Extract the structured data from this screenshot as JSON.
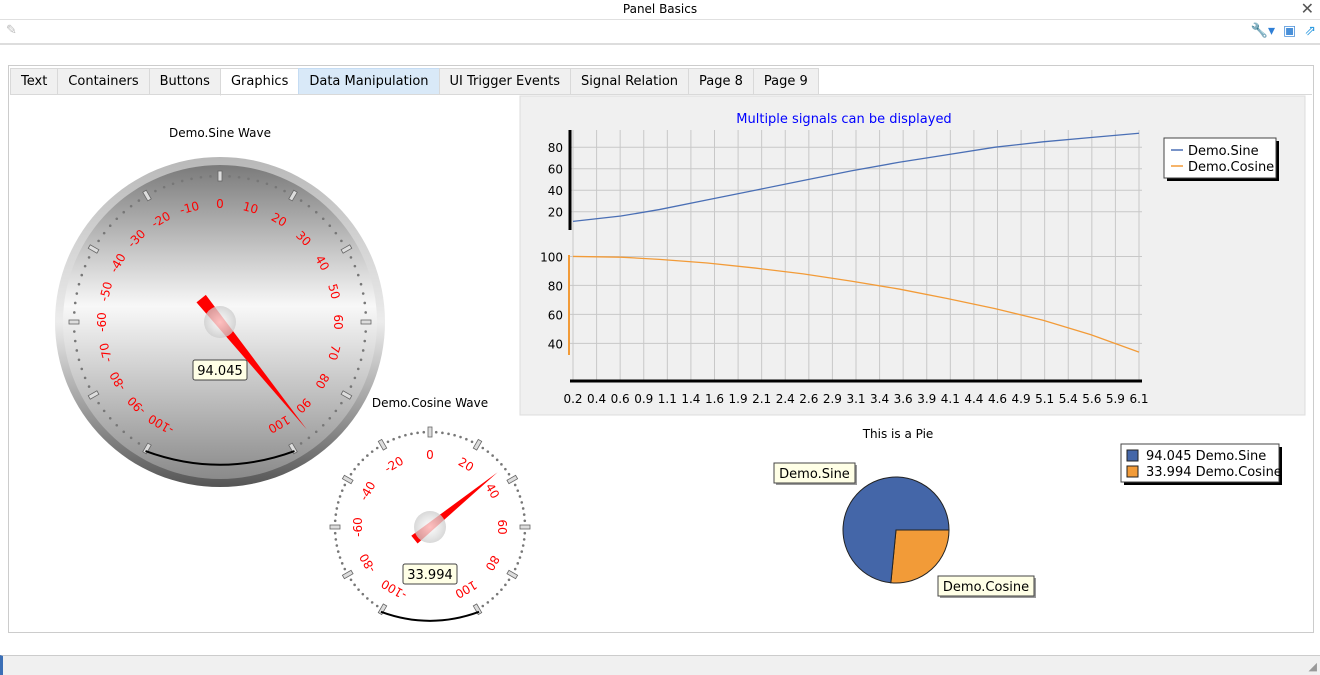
{
  "window": {
    "title": "Panel Basics"
  },
  "icons": {
    "close": "close-icon",
    "edit": "pencil-icon",
    "settings": "wrench-icon",
    "close_window": "window-close-icon",
    "popout": "external-link-icon"
  },
  "tabs": [
    {
      "label": "Text"
    },
    {
      "label": "Containers"
    },
    {
      "label": "Buttons"
    },
    {
      "label": "Graphics",
      "active": true
    },
    {
      "label": "Data Manipulation",
      "hover": true
    },
    {
      "label": "UI Trigger Events"
    },
    {
      "label": "Signal Relation"
    },
    {
      "label": "Page 8"
    },
    {
      "label": "Page 9"
    }
  ],
  "gauges": {
    "sine": {
      "title": "Demo.Sine Wave",
      "value": 94.045,
      "display": "94.045",
      "min": -100,
      "max": 100,
      "label_step": 10
    },
    "cosine": {
      "title": "Demo.Cosine Wave",
      "value": 33.994,
      "display": "33.994",
      "min": -100,
      "max": 100,
      "label_step": 20
    }
  },
  "chart_data": [
    {
      "type": "line",
      "title": "Multiple signals can be displayed",
      "title_color": "#0000ff",
      "x_ticks": [
        "0.2",
        "0.4",
        "0.6",
        "0.9",
        "1.1",
        "1.4",
        "1.6",
        "1.9",
        "2.1",
        "2.4",
        "2.6",
        "2.9",
        "3.1",
        "3.4",
        "3.6",
        "3.9",
        "4.1",
        "4.4",
        "4.6",
        "4.9",
        "5.1",
        "5.4",
        "5.6",
        "5.9",
        "6.1"
      ],
      "xlim": [
        0.2,
        6.1
      ],
      "grid": true,
      "legend": "top-right",
      "series": [
        {
          "name": "Demo.Sine",
          "color": "#4a6fb5",
          "ylim": [
            3,
            96
          ],
          "y_ticks": [
            20,
            40,
            60,
            80
          ],
          "x": [
            0.2,
            0.7,
            1.1,
            1.6,
            2.1,
            2.6,
            3.1,
            3.6,
            4.1,
            4.6,
            5.1,
            5.6,
            6.1
          ],
          "y": [
            11,
            16,
            22,
            31,
            40,
            49,
            58,
            66,
            73,
            80,
            85,
            89,
            93
          ]
        },
        {
          "name": "Demo.Cosine",
          "color": "#f29b38",
          "ylim": [
            32,
            101
          ],
          "y_ticks": [
            40,
            60,
            80,
            100
          ],
          "x": [
            0.2,
            0.7,
            1.1,
            1.6,
            2.1,
            2.6,
            3.1,
            3.6,
            4.1,
            4.6,
            5.1,
            5.6,
            6.1
          ],
          "y": [
            100,
            99.5,
            98,
            95.5,
            92,
            88,
            83,
            77.5,
            71,
            64,
            56,
            46,
            34
          ]
        }
      ]
    },
    {
      "type": "pie",
      "title": "This is a Pie",
      "legend": "top-right",
      "slices": [
        {
          "name": "Demo.Sine",
          "value": 94.045,
          "label": "94.045 Demo.Sine",
          "color": "#4466a8"
        },
        {
          "name": "Demo.Cosine",
          "value": 33.994,
          "label": "33.994 Demo.Cosine",
          "color": "#f29b38"
        }
      ]
    }
  ]
}
